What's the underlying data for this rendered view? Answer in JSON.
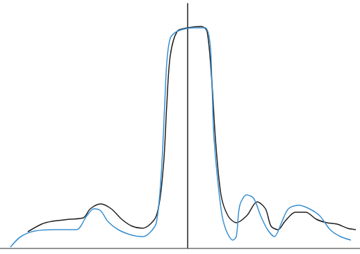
{
  "chart_data": {
    "type": "line",
    "xlim": [
      -270,
      248
    ],
    "ylim": [
      0,
      352
    ],
    "tick_labels": false,
    "grid": false,
    "series": [
      {
        "color": "#1e1e1e",
        "x": [
          -230,
          -210,
          -195,
          -170,
          -150,
          -140,
          -125,
          -110,
          -95,
          -80,
          -65,
          -45,
          -35,
          -30,
          -25,
          -15,
          0,
          20,
          28,
          35,
          40,
          48,
          58,
          70,
          85,
          100,
          112,
          120,
          130,
          140,
          155,
          170,
          185,
          200,
          215,
          230,
          242
        ],
        "values": [
          24,
          35,
          39,
          42,
          44,
          57,
          64,
          57,
          42,
          32,
          29,
          47,
          117,
          207,
          277,
          312,
          317,
          319,
          312,
          237,
          157,
          77,
          47,
          37,
          47,
          67,
          57,
          32,
          27,
          39,
          52,
          52,
          42,
          37,
          35,
          29,
          27
        ]
      },
      {
        "color": "#3a8fd0",
        "x": [
          -255,
          -240,
          -220,
          -190,
          -160,
          -145,
          -135,
          -125,
          -115,
          -100,
          -80,
          -65,
          -55,
          -45,
          -38,
          -33,
          -30,
          -25,
          -15,
          10,
          25,
          32,
          35,
          38,
          48,
          55,
          65,
          70,
          75,
          85,
          95,
          105,
          115,
          125,
          135,
          145,
          160,
          175,
          190,
          205,
          220,
          235
        ],
        "values": [
          2,
          17,
          25,
          27,
          27,
          47,
          57,
          54,
          39,
          27,
          19,
          17,
          22,
          37,
          107,
          207,
          267,
          302,
          312,
          317,
          317,
          297,
          237,
          157,
          57,
          27,
          12,
          17,
          62,
          77,
          72,
          47,
          27,
          17,
          37,
          57,
          62,
          57,
          47,
          27,
          17,
          12
        ]
      }
    ]
  }
}
